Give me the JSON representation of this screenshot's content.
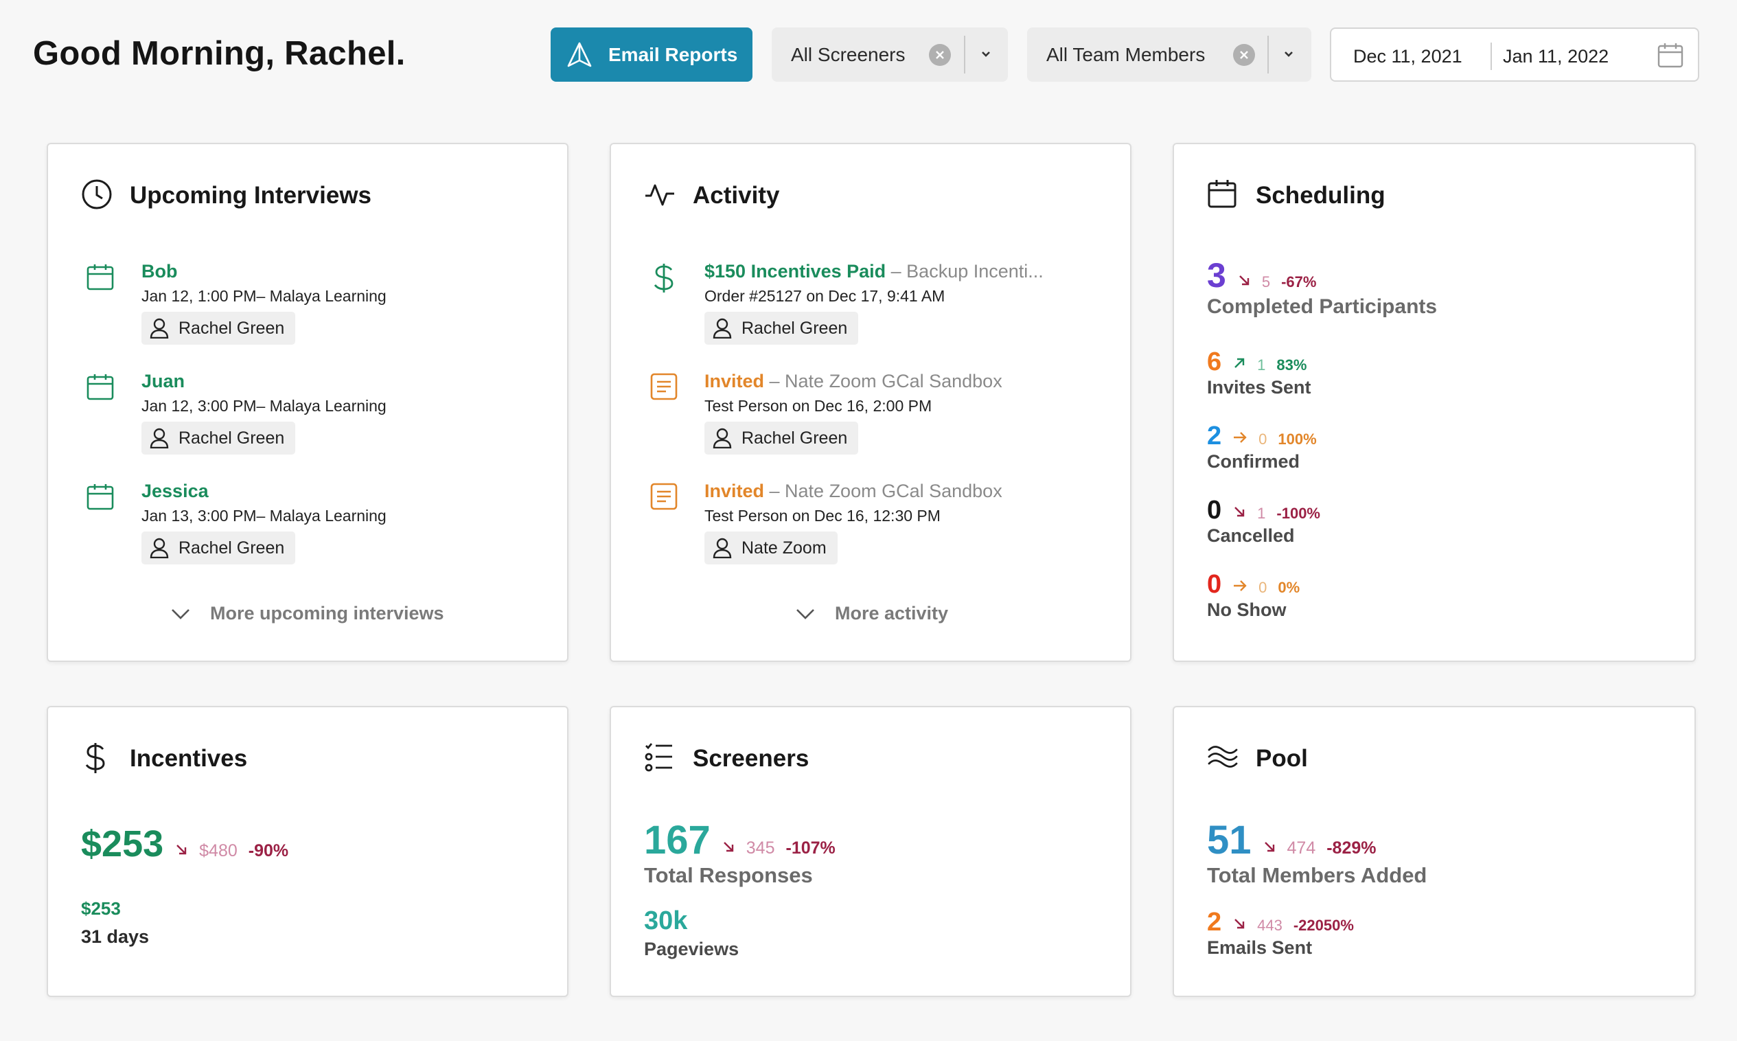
{
  "header": {
    "greeting": "Good Morning, Rachel.",
    "email_button": "Email Reports",
    "screeners_filter": "All Screeners",
    "team_filter": "All Team Members",
    "date_start": "Dec 11, 2021",
    "date_end": "Jan 11, 2022"
  },
  "colors": {
    "accent": "#1b89ad",
    "green": "#1a8c5c",
    "orange": "#e2862a",
    "purple": "#6b3fd1",
    "teal": "#2aa89b",
    "blue": "#1c8fe0",
    "red": "#e2261d",
    "decline": "#9b2145"
  },
  "upcoming": {
    "title": "Upcoming Interviews",
    "items": [
      {
        "name": "Bob",
        "time": "Jan 12, 1:00 PM– Malaya Learning",
        "owner": "Rachel Green"
      },
      {
        "name": "Juan",
        "time": "Jan 12, 3:00 PM– Malaya Learning",
        "owner": "Rachel Green"
      },
      {
        "name": "Jessica",
        "time": "Jan 13, 3:00 PM– Malaya Learning",
        "owner": "Rachel Green"
      }
    ],
    "more": "More upcoming interviews"
  },
  "activity": {
    "title": "Activity",
    "items": [
      {
        "headline": "$150 Incentives Paid",
        "detail": " – Backup Incenti...",
        "sub": "Order #25127 on Dec 17, 9:41 AM",
        "owner": "Rachel Green"
      },
      {
        "headline": "Invited",
        "detail": " – Nate Zoom GCal Sandbox",
        "sub": "Test Person on Dec 16, 2:00 PM",
        "owner": "Rachel Green"
      },
      {
        "headline": "Invited",
        "detail": " – Nate Zoom GCal Sandbox",
        "sub": "Test Person on Dec 16, 12:30 PM",
        "owner": "Nate Zoom"
      }
    ],
    "more": "More activity"
  },
  "scheduling": {
    "title": "Scheduling",
    "stats": [
      {
        "value": "3",
        "prev": "5",
        "pct": "-67%",
        "label": "Completed Participants"
      },
      {
        "value": "6",
        "prev": "1",
        "pct": "83%",
        "label": "Invites Sent"
      },
      {
        "value": "2",
        "prev": "0",
        "pct": "100%",
        "label": "Confirmed"
      },
      {
        "value": "0",
        "prev": "1",
        "pct": "-100%",
        "label": "Cancelled"
      },
      {
        "value": "0",
        "prev": "0",
        "pct": "0%",
        "label": "No Show"
      }
    ]
  },
  "incentives": {
    "title": "Incentives",
    "value": "$253",
    "prev": "$480",
    "pct": "-90%",
    "small_value": "$253",
    "period": "31 days"
  },
  "screeners": {
    "title": "Screeners",
    "value": "167",
    "prev": "345",
    "pct": "-107%",
    "label": "Total Responses",
    "secondary_value": "30k",
    "secondary_label": "Pageviews"
  },
  "pool": {
    "title": "Pool",
    "value": "51",
    "prev": "474",
    "pct": "-829%",
    "label": "Total Members Added",
    "secondary_value": "2",
    "secondary_prev": "443",
    "secondary_pct": "-22050%",
    "secondary_label": "Emails Sent"
  }
}
